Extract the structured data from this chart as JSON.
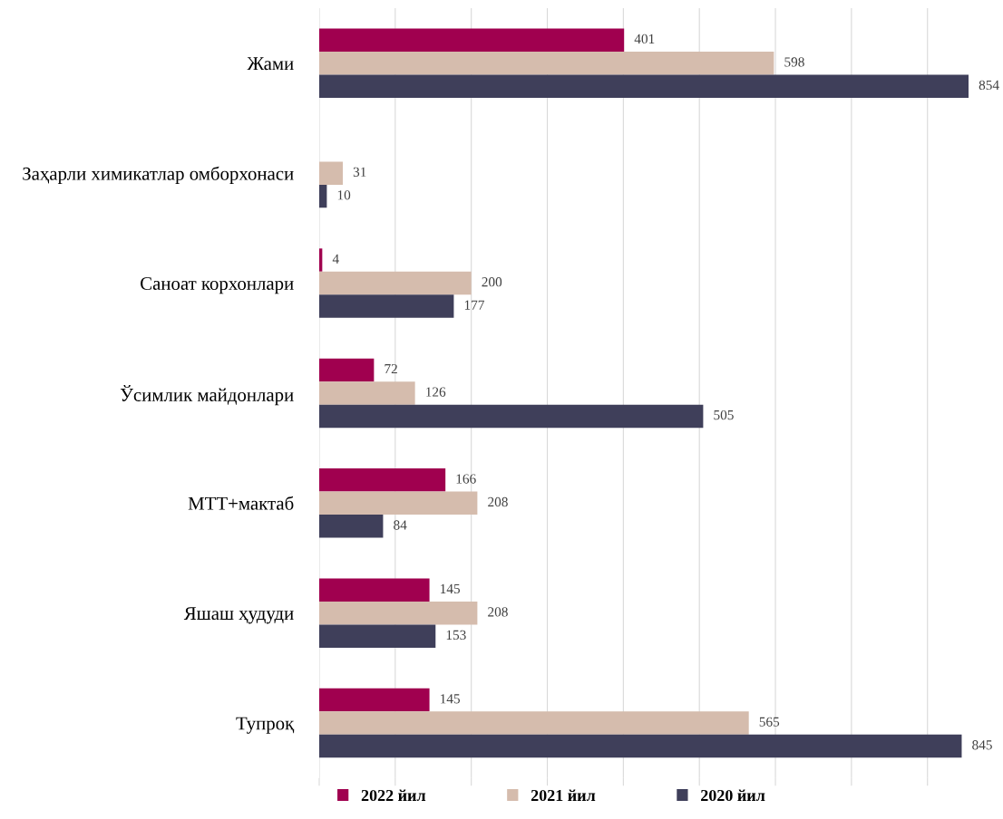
{
  "chart_data": {
    "type": "bar",
    "orientation": "horizontal",
    "data_labels": true,
    "grid": "x",
    "legend": "bottom",
    "tick_labels": "y",
    "categories": [
      "Жами",
      "Заҳарли химикатлар омборхонаси",
      "Саноат корхонлари",
      "Ўсимлик майдонлари",
      "МТТ+мактаб",
      "Яшаш ҳудуди",
      "Тупроқ"
    ],
    "xticks": [
      {
        "value": 0,
        "label": null
      },
      {
        "value": 100,
        "label": null
      },
      {
        "value": 200,
        "label": null
      },
      {
        "value": 300,
        "label": null
      },
      {
        "value": 400,
        "label": null
      },
      {
        "value": 500,
        "label": null
      },
      {
        "value": 600,
        "label": null
      },
      {
        "value": 700,
        "label": null
      },
      {
        "value": 800,
        "label": null
      }
    ],
    "series": [
      {
        "name": "2022 йил",
        "color": "#a0004f",
        "values": [
          401,
          null,
          4,
          72,
          166,
          145,
          145
        ]
      },
      {
        "name": "2021 йил",
        "color": "#d5bcad",
        "values": [
          598,
          31,
          200,
          126,
          208,
          208,
          565
        ]
      },
      {
        "name": "2020 йил",
        "color": "#3f3f5a",
        "values": [
          854,
          10,
          177,
          505,
          84,
          153,
          845
        ]
      }
    ]
  }
}
